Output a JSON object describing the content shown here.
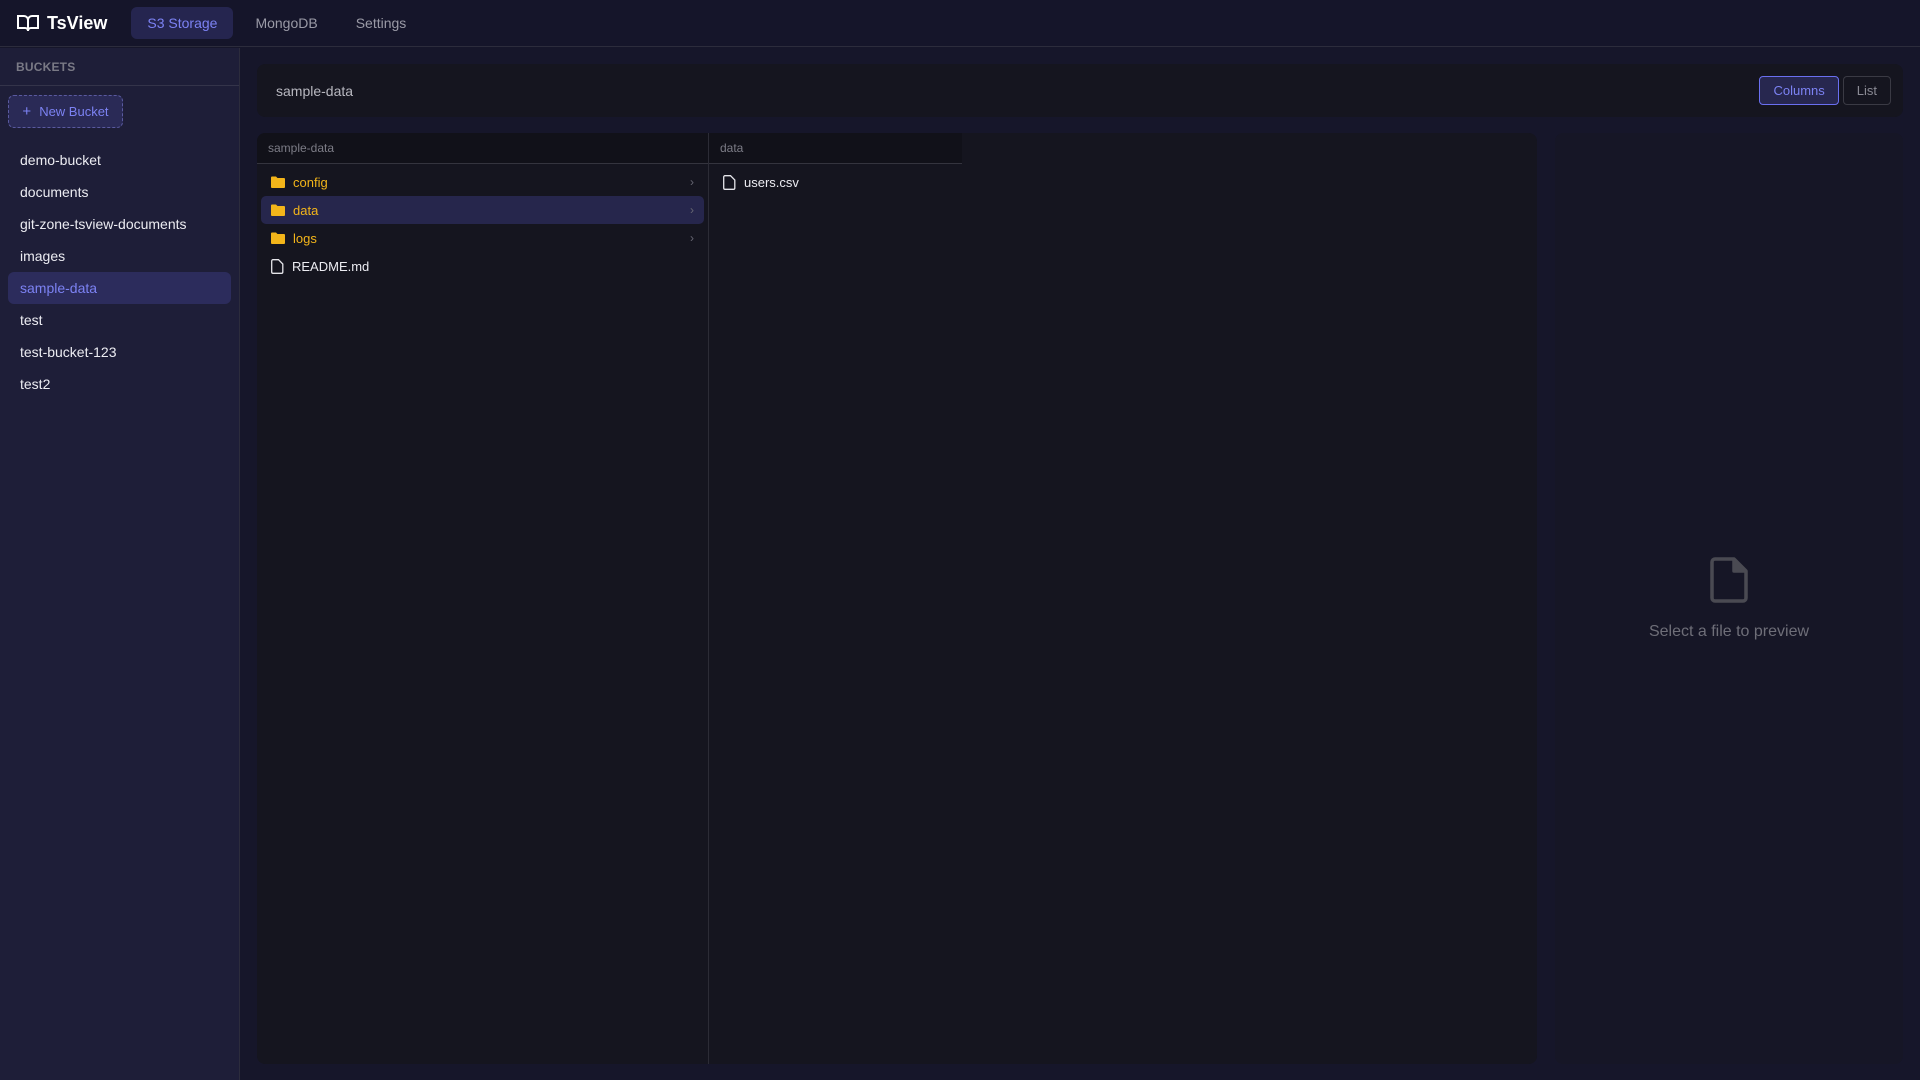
{
  "app": {
    "title": "TsView",
    "logo_icon": "book-open-icon"
  },
  "nav": {
    "tabs": [
      {
        "label": "S3 Storage",
        "active": true
      },
      {
        "label": "MongoDB"
      },
      {
        "label": "Settings"
      }
    ]
  },
  "sidebar": {
    "heading": "BUCKETS",
    "new_bucket": "New Bucket",
    "buckets": [
      "demo-bucket",
      "documents",
      "git-zone-tsview-documents",
      "images",
      "sample-data",
      "test",
      "test-bucket-123",
      "test2"
    ],
    "selected": "sample-data"
  },
  "toolbar": {
    "path": "sample-data",
    "views": {
      "columns": "Columns",
      "list": "List"
    },
    "active_view": "Columns"
  },
  "columns": [
    {
      "header": "sample-data",
      "items": [
        {
          "name": "config",
          "type": "folder"
        },
        {
          "name": "data",
          "type": "folder",
          "selected": true
        },
        {
          "name": "logs",
          "type": "folder"
        },
        {
          "name": "README.md",
          "type": "file"
        }
      ]
    },
    {
      "header": "data",
      "items": [
        {
          "name": "users.csv",
          "type": "file"
        }
      ]
    }
  ],
  "preview": {
    "empty_text": "Select a file to preview"
  },
  "colors": {
    "accent": "#7c82f3",
    "folder": "#f3b51a",
    "background": "#16162a"
  }
}
